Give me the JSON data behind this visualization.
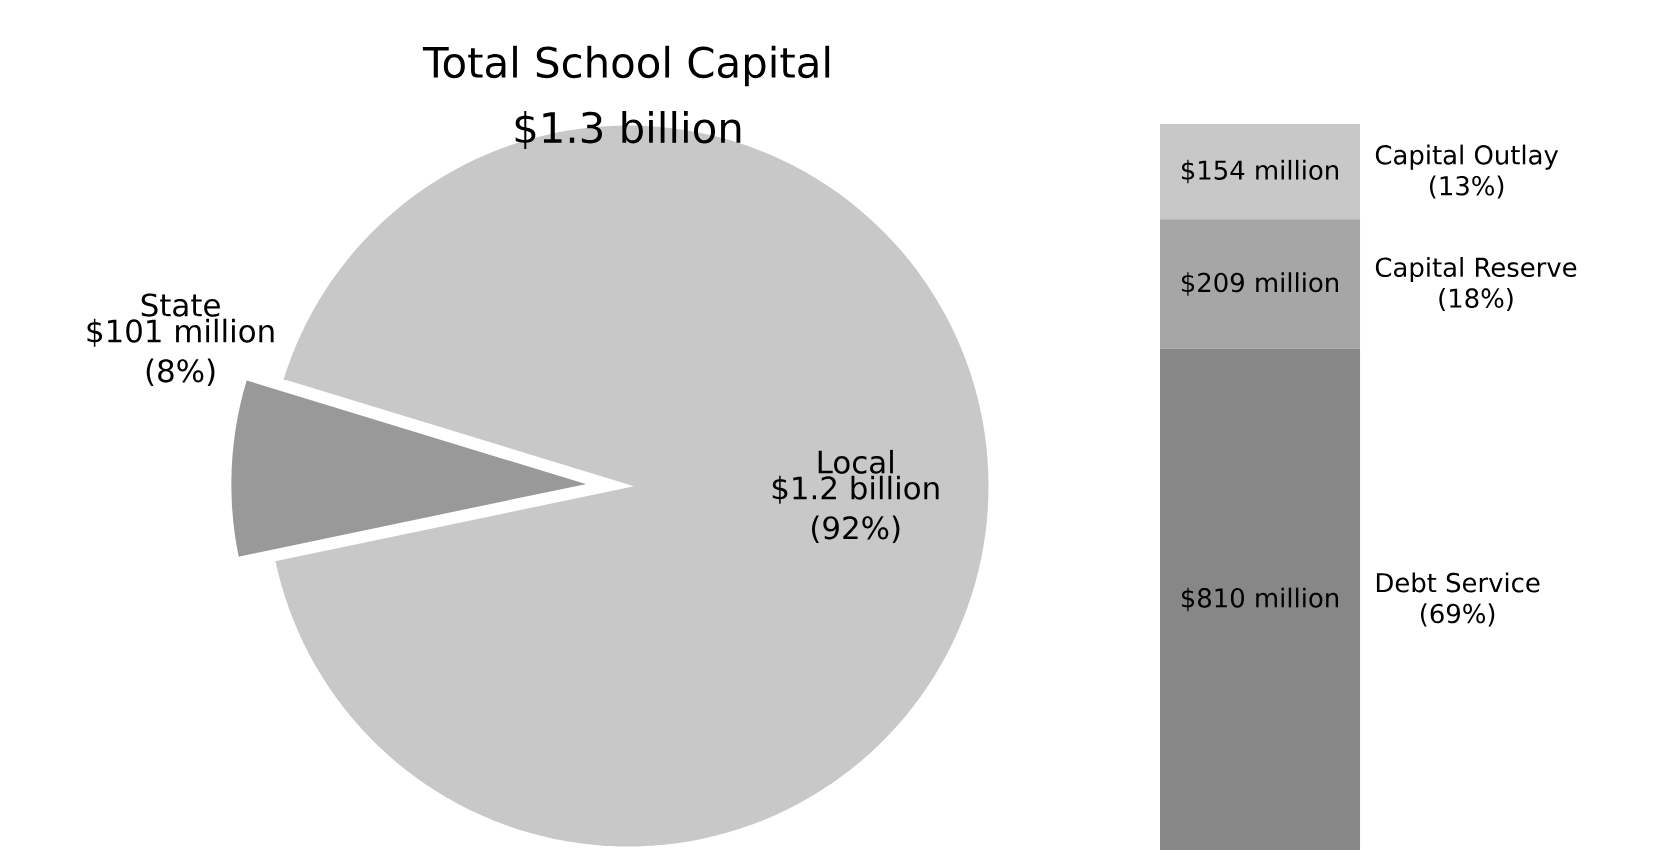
{
  "chart_data": [
    {
      "type": "pie",
      "title": "Total School Capital",
      "subtitle": "$1.3 billion",
      "categories": [
        "State",
        "Local"
      ],
      "values": [
        8,
        92
      ],
      "colors": [
        "#999999",
        "#c8c8c8"
      ],
      "value_labels": [
        "$101 million (8%)",
        "$1.2 billion (92%)"
      ]
    },
    {
      "type": "bar",
      "stacked": true,
      "categories": [
        null
      ],
      "annotations": [
        "(69%)",
        "(18%)",
        "(13%)"
      ],
      "series": [
        {
          "name": "Debt Service",
          "color": "#878787",
          "values": [
            810
          ],
          "value_labels": [
            "$810 million"
          ]
        },
        {
          "name": "Capital Reserve",
          "color": "#a6a6a6",
          "values": [
            209
          ],
          "value_labels": [
            "$209 million"
          ]
        },
        {
          "name": "Capital Outlay",
          "color": "#c8c8c8",
          "values": [
            154
          ],
          "value_labels": [
            "$154 million"
          ]
        }
      ]
    }
  ]
}
